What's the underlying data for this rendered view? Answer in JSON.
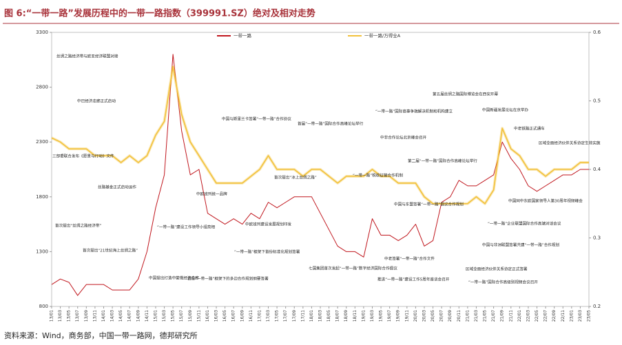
{
  "chart_data": {
    "type": "line",
    "title": "图 6:“一带一路”发展历程中的一带一路指数（399991.SZ）绝对及相对走势",
    "source": "资料来源：Wind，商务部，中国一带一路网，德邦研究所",
    "categories": [
      "13/01",
      "13/03",
      "13/05",
      "13/07",
      "13/09",
      "13/11",
      "14/01",
      "14/03",
      "14/05",
      "14/07",
      "14/09",
      "14/11",
      "15/01",
      "15/03",
      "15/05",
      "15/07",
      "15/09",
      "15/11",
      "16/01",
      "16/03",
      "16/05",
      "16/07",
      "16/09",
      "16/11",
      "17/01",
      "17/03",
      "17/05",
      "17/07",
      "17/09",
      "17/11",
      "18/01",
      "18/03",
      "18/05",
      "18/07",
      "18/09",
      "18/11",
      "19/01",
      "19/03",
      "19/05",
      "19/07",
      "19/09",
      "19/11",
      "20/01",
      "20/03",
      "20/05",
      "20/07",
      "20/09",
      "20/11",
      "21/01",
      "21/03",
      "21/05",
      "21/07",
      "21/09",
      "21/11",
      "22/01",
      "22/03",
      "22/05",
      "22/07",
      "22/09",
      "22/11",
      "23/01",
      "23/03",
      "23/05"
    ],
    "series": [
      {
        "name": "一带一路",
        "color": "#c0161d",
        "values": [
          1000,
          1050,
          1020,
          900,
          1000,
          1000,
          1000,
          950,
          950,
          950,
          1050,
          1300,
          1700,
          2000,
          3100,
          2400,
          2000,
          2050,
          1650,
          1600,
          1550,
          1600,
          1550,
          1650,
          1600,
          1750,
          1700,
          1750,
          1800,
          1800,
          1800,
          1650,
          1500,
          1350,
          1300,
          1300,
          1250,
          1600,
          1450,
          1450,
          1400,
          1450,
          1550,
          1350,
          1400,
          1750,
          1800,
          1950,
          1900,
          1900,
          1950,
          2000,
          2300,
          2150,
          2050,
          1900,
          1850,
          1900,
          1950,
          2000,
          2000,
          2050,
          2050
        ]
      },
      {
        "name": "一带一路/万得全A",
        "color": "#f2c13a",
        "axis": "y2",
        "values": [
          0.446,
          0.44,
          0.43,
          0.43,
          0.43,
          0.42,
          0.42,
          0.42,
          0.41,
          0.42,
          0.41,
          0.42,
          0.45,
          0.47,
          0.55,
          0.48,
          0.44,
          0.42,
          0.4,
          0.38,
          0.38,
          0.38,
          0.38,
          0.39,
          0.4,
          0.42,
          0.4,
          0.4,
          0.4,
          0.39,
          0.4,
          0.4,
          0.39,
          0.38,
          0.39,
          0.39,
          0.39,
          0.4,
          0.39,
          0.39,
          0.38,
          0.38,
          0.38,
          0.36,
          0.35,
          0.35,
          0.35,
          0.35,
          0.35,
          0.36,
          0.35,
          0.37,
          0.46,
          0.43,
          0.42,
          0.4,
          0.4,
          0.39,
          0.4,
          0.4,
          0.4,
          0.41,
          0.41
        ]
      }
    ],
    "ylim": [
      800,
      3300
    ],
    "yticks": [
      800,
      1300,
      1800,
      2300,
      2800,
      3300
    ],
    "y2lim": [
      0.2,
      0.6
    ],
    "y2ticks": [
      0.2,
      0.3,
      0.4,
      0.5,
      0.6
    ],
    "annotations": [
      "丝绸之路经济带与欧亚经济联盟对接",
      "中巴经济走廊正式启动",
      "三部委联合发布《愿景与行动》文件",
      "丝路基金正式启动运作",
      "首次提出“丝绸之路经济带”",
      "首次提出“21世纪海上丝绸之路”",
      "中国提出打造中蒙俄经济走廊",
      "“一带一路”建设工作领导小组亮相",
      "首份“一带一路”框架下的多边合作规划纲要签署",
      "中国与斯里兰卡签署“一带一路”合作协议",
      "首届“一带一路”国际合作高峰论坛举行",
      "中欧班列统一品牌",
      "“一带一路”框架下首份标准化规划签署",
      "中欧班列建设发展规划印发",
      "首次提出“冰上丝绸之路”",
      "“一带一路”国际商事争端解决机制和机构建立",
      "中非合作论坛北京峰会召开",
      "“一带一路”税收征管合作机制",
      "第二届“一带一路”国际合作高峰论坛举行",
      "中国与东盟签署“一带一路”倡议合作规划",
      "七国集团首次发起“一带一路”数字经济国际合作倡议",
      "中老签署“一带一路”合作文件",
      "推进“一带一路”建设工作5周年座谈会召开",
      "第五届丝绸之路国际博览会在西安开幕",
      "中国新疆发展论坛在京举办",
      "中老铁路正式通车",
      "区域全面经济伙伴关系协定生效实施",
      "中国同中东欧国家领导人第30周年视频峰会",
      "“一带一路”企业联盟国际合作高端对话会议",
      "中国与非洲联盟签署共建“一带一路”合作规划",
      "区域全面经济伙伴关系协定正式签署",
      "“一带一路”国际合作高级别视频会议召开"
    ]
  }
}
